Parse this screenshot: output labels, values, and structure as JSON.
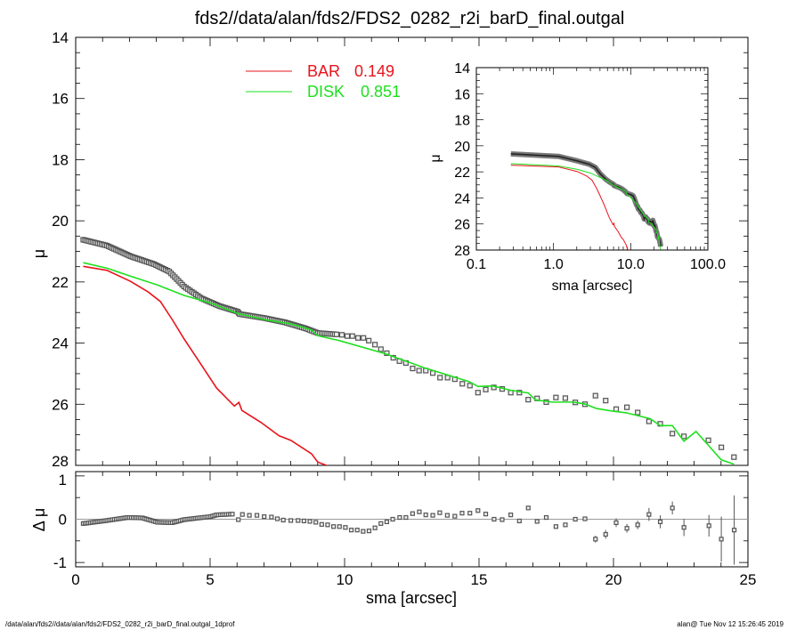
{
  "chart_data": {
    "type": "line",
    "title": "fds2//data/alan/fds2/FDS2_0282_r2i_barD_final.outgal",
    "footer_left": "/data/alan/fds2//data/alan/fds2/FDS2_0282_r2i_barD_final.outgal_1dprof",
    "footer_right": "alan@  Tue Nov 12 15:26:45 2019",
    "main": {
      "xlabel": "sma [arcsec]",
      "ylabel": "μ",
      "xlim": [
        0,
        25
      ],
      "ylim": [
        14,
        28
      ],
      "y_inverted": true,
      "xticks": [
        "0",
        "5",
        "10",
        "15",
        "20",
        "25"
      ],
      "yticks": [
        "14",
        "16",
        "18",
        "20",
        "22",
        "24",
        "26",
        "28"
      ]
    },
    "legend": {
      "placement": "top-center",
      "entries": [
        {
          "label": "BAR",
          "value": "0.149",
          "color": "#e8141c"
        },
        {
          "label": "DISK",
          "value": "0.851",
          "color": "#1ee01e"
        }
      ]
    },
    "data_profile_dense": {
      "x": [
        0.28,
        1.16,
        2.04,
        2.92,
        3.48,
        4.03,
        4.69,
        5.35,
        6.02,
        6.1,
        7.01,
        7.78,
        8.55,
        9.0,
        9.77
      ],
      "y": [
        20.62,
        20.81,
        21.16,
        21.42,
        21.66,
        22.15,
        22.54,
        22.79,
        22.97,
        23.05,
        23.18,
        23.32,
        23.52,
        23.67,
        23.72
      ]
    },
    "data_profile_sparse": {
      "x": [
        9.9,
        10.1,
        10.29,
        10.5,
        10.7,
        10.9,
        11.13,
        11.35,
        11.57,
        11.81,
        12.04,
        12.28,
        12.53,
        12.77,
        13.02,
        13.28,
        13.55,
        13.83,
        14.1,
        14.38,
        14.66,
        14.96,
        15.25,
        15.55,
        15.86,
        16.18,
        16.5,
        16.83,
        17.16,
        17.5,
        17.86,
        18.21,
        18.58,
        18.94,
        19.33,
        19.71,
        20.1,
        20.5,
        20.9,
        21.32,
        21.74,
        22.19,
        22.62,
        23.53,
        24.01,
        24.48
      ],
      "y": [
        23.73,
        23.77,
        23.77,
        23.83,
        23.83,
        23.92,
        24.05,
        24.2,
        24.33,
        24.48,
        24.59,
        24.65,
        24.83,
        24.9,
        24.9,
        24.98,
        25.13,
        25.13,
        25.18,
        25.33,
        25.39,
        25.62,
        25.52,
        25.45,
        25.5,
        25.62,
        25.62,
        25.85,
        25.81,
        25.93,
        25.78,
        25.8,
        25.94,
        26.0,
        25.72,
        25.88,
        26.16,
        26.1,
        26.27,
        26.56,
        26.64,
        26.96,
        27.05,
        27.18,
        27.41,
        27.73
      ]
    },
    "series": [
      {
        "name": "BAR",
        "color": "#e8141c",
        "x": [
          0.28,
          1.16,
          2.04,
          2.7,
          3.15,
          3.59,
          4.03,
          4.58,
          5.24,
          5.9,
          6.07,
          6.18,
          6.9,
          7.56,
          8.0,
          8.77,
          9.0,
          9.33,
          9.5
        ],
        "y": [
          21.49,
          21.62,
          21.98,
          22.33,
          22.64,
          23.23,
          23.86,
          24.59,
          25.47,
          26.06,
          25.94,
          26.2,
          26.6,
          27.03,
          27.18,
          27.62,
          27.89,
          28.0,
          28.2
        ]
      },
      {
        "name": "DISK",
        "color": "#1ee01e",
        "x": [
          0.28,
          1.16,
          2.04,
          3.04,
          4.03,
          5.02,
          6.02,
          7.01,
          8.0,
          8.77,
          9.0,
          9.77,
          11.53,
          12.97,
          14.63,
          14.96,
          15.51,
          16.17,
          16.83,
          17.1,
          17.72,
          18.49,
          18.93,
          19.37,
          19.92,
          20.47,
          21.36,
          21.74,
          22.19,
          22.62,
          23.07,
          24.01,
          24.48
        ],
        "y": [
          21.37,
          21.55,
          21.81,
          22.1,
          22.44,
          22.69,
          23.03,
          23.23,
          23.37,
          23.57,
          23.76,
          23.91,
          24.35,
          24.81,
          25.26,
          25.42,
          25.4,
          25.54,
          25.63,
          25.86,
          25.93,
          25.93,
          25.99,
          26.14,
          26.22,
          26.28,
          26.47,
          26.7,
          26.7,
          27.21,
          26.89,
          27.82,
          27.96
        ]
      }
    ],
    "residuals": {
      "ylabel": "Δ μ",
      "ylim": [
        -1.1,
        1.1
      ],
      "yticks": [
        "1",
        "0",
        "-1"
      ],
      "dense": {
        "x": [
          0.28,
          1.16,
          1.93,
          2.48,
          3.04,
          3.59,
          4.03,
          4.58,
          5.02,
          5.24,
          5.9
        ],
        "y": [
          -0.1,
          -0.03,
          0.04,
          0.03,
          -0.07,
          -0.08,
          -0.01,
          0.03,
          0.06,
          0.1,
          0.12
        ]
      },
      "x": [
        6.05,
        6.2,
        6.46,
        6.74,
        7.01,
        7.28,
        7.5,
        7.72,
        8.0,
        8.27,
        8.49,
        8.71,
        8.93,
        9.15,
        9.37,
        9.59,
        9.81,
        10.03,
        10.25,
        10.47,
        10.69,
        10.91,
        11.13,
        11.35,
        11.57,
        11.79,
        12.05,
        12.28,
        12.53,
        12.78,
        13.02,
        13.28,
        13.54,
        13.82,
        14.1,
        14.37,
        14.66,
        14.96,
        15.25,
        15.56,
        15.86,
        16.18,
        16.5,
        16.83,
        17.16,
        17.5,
        17.86,
        18.21,
        18.58,
        18.94,
        19.33,
        19.71,
        20.1,
        20.5,
        20.9,
        21.32,
        21.74,
        22.19,
        22.62,
        23.55,
        24.01,
        24.49
      ],
      "y": [
        -0.01,
        0.11,
        0.09,
        0.09,
        0.06,
        0.05,
        0.01,
        -0.02,
        -0.03,
        -0.03,
        -0.04,
        -0.05,
        -0.07,
        -0.12,
        -0.13,
        -0.17,
        -0.17,
        -0.19,
        -0.25,
        -0.25,
        -0.28,
        -0.27,
        -0.2,
        -0.1,
        -0.06,
        0.0,
        0.04,
        0.04,
        0.13,
        0.17,
        0.1,
        0.09,
        0.15,
        0.09,
        0.07,
        0.14,
        0.14,
        0.2,
        0.12,
        0.0,
        -0.01,
        0.1,
        -0.04,
        0.26,
        -0.05,
        0.04,
        -0.17,
        -0.13,
        0.0,
        0.01,
        -0.46,
        -0.35,
        -0.08,
        -0.21,
        -0.13,
        0.11,
        -0.06,
        0.26,
        -0.19,
        -0.15,
        -0.46,
        -0.25
      ],
      "err": [
        0,
        0,
        0,
        0,
        0,
        0,
        0,
        0,
        0,
        0,
        0,
        0,
        0,
        0,
        0,
        0,
        0,
        0,
        0,
        0,
        0,
        0,
        0,
        0,
        0,
        0,
        0,
        0,
        0,
        0,
        0,
        0,
        0,
        0,
        0,
        0,
        0,
        0,
        0,
        0,
        0,
        0,
        0,
        0.03,
        0,
        0,
        0.04,
        0,
        0,
        0,
        0.08,
        0.1,
        0.1,
        0.1,
        0.1,
        0.15,
        0.15,
        0.15,
        0.2,
        0.25,
        0.52,
        0.8
      ]
    },
    "inset": {
      "xlabel": "sma [arcsec]",
      "ylabel": "μ",
      "xscale": "log",
      "xlim": [
        0.1,
        100
      ],
      "ylim": [
        14,
        28
      ],
      "xticks": [
        "0.1",
        "1.0",
        "10.0",
        "100.0"
      ],
      "yticks": [
        "14",
        "16",
        "18",
        "20",
        "22",
        "24",
        "26",
        "28"
      ]
    }
  }
}
